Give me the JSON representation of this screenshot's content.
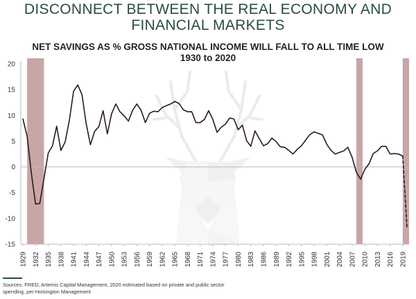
{
  "header": {
    "title_line1": "DISCONNECT BETWEEN THE REAL ECONOMY AND",
    "title_line2": "FINANCIAL MARKETS"
  },
  "footnote": {
    "line1": "Sources: FRED, Artemis Capital Management, 2020 estimated based on private and public sector",
    "line2": "spending, per Hoisington Management"
  },
  "colors": {
    "title": "#2c4a43",
    "line": "#2a1a1e",
    "recession_band": "#c9a5a7",
    "axis": "#bbbbbb"
  },
  "chart_data": {
    "type": "line",
    "title_line1": "NET SAVINGS AS % GROSS NATIONAL INCOME WILL FALL TO ALL TIME LOW",
    "title_line2": "1930 to 2020",
    "xlabel": "",
    "ylabel": "",
    "xlim": [
      1929,
      2020
    ],
    "ylim": [
      -15,
      20
    ],
    "y_ticks": [
      20,
      15,
      10,
      5,
      0,
      -5,
      -10,
      -15
    ],
    "x_ticks": [
      1929,
      1932,
      1935,
      1938,
      1941,
      1944,
      1947,
      1950,
      1953,
      1956,
      1959,
      1962,
      1965,
      1968,
      1971,
      1974,
      1977,
      1980,
      1983,
      1986,
      1989,
      1992,
      1995,
      1998,
      2001,
      2004,
      2007,
      2010,
      2013,
      2016,
      2019
    ],
    "grid": false,
    "zero_line": true,
    "shaded_periods": [
      [
        1930,
        1934
      ],
      [
        2008,
        2009.5
      ],
      [
        2019,
        2020.5
      ]
    ],
    "background_logo": "deer-head-logo",
    "series": [
      {
        "style": "solid",
        "x": [
          1929,
          1930,
          1931,
          1932,
          1933,
          1934,
          1935,
          1936,
          1937,
          1938,
          1939,
          1940,
          1941,
          1942,
          1943,
          1944,
          1945,
          1946,
          1947,
          1948,
          1949,
          1950,
          1951,
          1952,
          1953,
          1954,
          1955,
          1956,
          1957,
          1958,
          1959,
          1960,
          1961,
          1962,
          1963,
          1964,
          1965,
          1966,
          1967,
          1968,
          1969,
          1970,
          1971,
          1972,
          1973,
          1974,
          1975,
          1976,
          1977,
          1978,
          1979,
          1980,
          1981,
          1982,
          1983,
          1984,
          1985,
          1986,
          1987,
          1988,
          1989,
          1990,
          1991,
          1992,
          1993,
          1994,
          1995,
          1996,
          1997,
          1998,
          1999,
          2000,
          2001,
          2002,
          2003,
          2004,
          2005,
          2006,
          2007,
          2008,
          2009,
          2010,
          2011,
          2012,
          2013,
          2014,
          2015,
          2016,
          2017,
          2018,
          2019
        ],
        "y": [
          9.3,
          6.0,
          -1.2,
          -7.2,
          -7.1,
          -2.2,
          2.7,
          4.1,
          7.9,
          3.2,
          4.8,
          9.0,
          14.7,
          15.9,
          14.0,
          8.4,
          4.3,
          6.9,
          7.8,
          10.9,
          6.4,
          10.3,
          12.2,
          10.7,
          9.9,
          8.9,
          11.0,
          12.2,
          11.0,
          8.6,
          10.4,
          10.8,
          10.7,
          11.5,
          11.9,
          12.2,
          12.7,
          12.3,
          11.1,
          10.7,
          10.7,
          8.6,
          8.6,
          9.2,
          10.9,
          9.2,
          6.7,
          7.7,
          8.3,
          9.5,
          9.3,
          7.2,
          8.1,
          5.1,
          4.0,
          7.0,
          5.5,
          4.1,
          4.5,
          5.6,
          4.9,
          3.9,
          3.8,
          3.2,
          2.5,
          3.4,
          4.1,
          5.2,
          6.3,
          6.8,
          6.5,
          6.2,
          4.4,
          3.2,
          2.5,
          2.8,
          3.1,
          3.8,
          1.9,
          -1.0,
          -2.4,
          -0.5,
          0.6,
          2.6,
          3.1,
          4.0,
          4.0,
          2.5,
          2.6,
          2.5,
          2.1
        ]
      },
      {
        "style": "dashed",
        "x": [
          2019,
          2020
        ],
        "y": [
          2.1,
          -11.8
        ]
      }
    ]
  }
}
